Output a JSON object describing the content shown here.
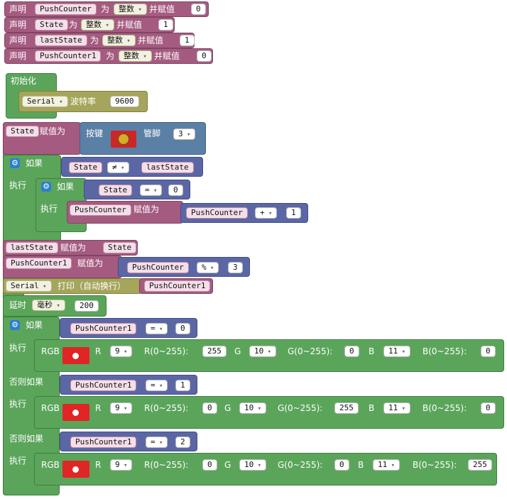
{
  "decl": {
    "kw": "声明",
    "as_kw": "为",
    "assign_kw": "并赋值",
    "type_opt": "整数",
    "vars": [
      {
        "name": "PushCounter",
        "value": "0"
      },
      {
        "name": "State",
        "value": "1"
      },
      {
        "name": "lastState",
        "value": "1"
      },
      {
        "name": "PushCounter1",
        "value": "0"
      }
    ]
  },
  "setup": {
    "title": "初始化",
    "serial_opt": "Serial",
    "baud_label": "波特率",
    "baud_value": "9600"
  },
  "read": {
    "target": "State",
    "assign_kw": "赋值为",
    "button_label": "按键",
    "pin_label": "管脚",
    "pin_value": "3"
  },
  "if1": {
    "if_kw": "如果",
    "do_kw": "执行",
    "left": "State",
    "op": "≠",
    "right": "lastState",
    "inner_left": "State",
    "inner_op": "=",
    "inner_right": "0",
    "inner_target": "PushCounter",
    "inner_assign_kw": "赋值为",
    "inner_expr_left": "PushCounter",
    "inner_expr_op": "+",
    "inner_expr_right": "1"
  },
  "assign_last": {
    "target": "lastState",
    "kw": "赋值为",
    "value": "State"
  },
  "assign_pc1": {
    "target": "PushCounter1",
    "kw": "赋值为",
    "left": "PushCounter",
    "op": "%",
    "right": "3"
  },
  "print": {
    "serial_opt": "Serial",
    "label": "打印（自动换行）",
    "value": "PushCounter1"
  },
  "delay": {
    "label": "延时",
    "unit": "毫秒",
    "value": "200"
  },
  "if2": {
    "if_kw": "如果",
    "elseif_kw": "否则如果",
    "do_kw": "执行",
    "r_label": "R",
    "g_label": "G",
    "b_label": "B",
    "r_range": "R(0~255):",
    "g_range": "G(0~255):",
    "b_range": "B(0~255):",
    "branches": [
      {
        "left": "PushCounter1",
        "op": "=",
        "right": "0",
        "rgb": "RGB",
        "r_pin": "9",
        "r_val": "255",
        "g_pin": "10",
        "g_val": "0",
        "b_pin": "11",
        "b_val": "0"
      },
      {
        "left": "PushCounter1",
        "op": "=",
        "right": "1",
        "rgb": "RGB",
        "r_pin": "9",
        "r_val": "0",
        "g_pin": "10",
        "g_val": "255",
        "b_pin": "11",
        "b_val": "0"
      },
      {
        "left": "PushCounter1",
        "op": "=",
        "right": "2",
        "rgb": "RGB",
        "r_pin": "9",
        "r_val": "0",
        "g_pin": "10",
        "g_val": "0",
        "b_pin": "11",
        "b_val": "255"
      }
    ]
  }
}
